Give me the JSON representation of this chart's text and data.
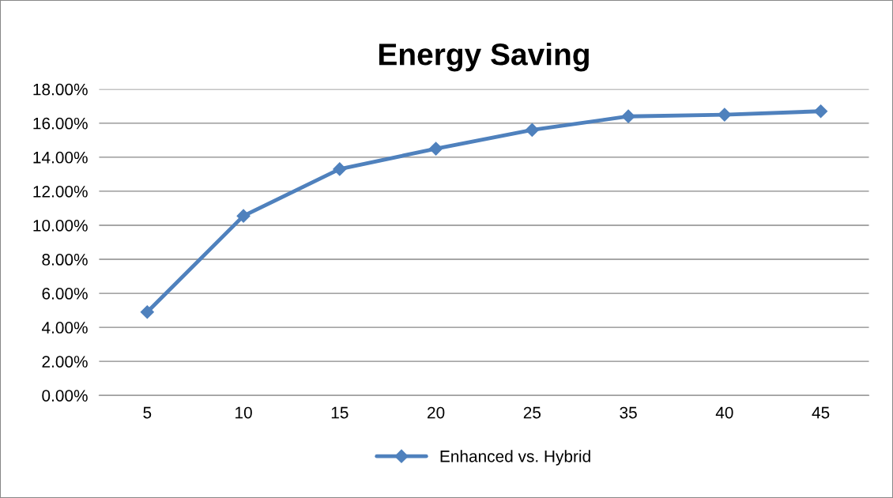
{
  "chart_data": {
    "type": "line",
    "title": "Energy Saving",
    "categories": [
      "5",
      "10",
      "15",
      "20",
      "25",
      "35",
      "40",
      "45"
    ],
    "series": [
      {
        "name": "Enhanced vs. Hybrid",
        "color": "#4f81bd",
        "values": [
          4.9,
          10.55,
          13.3,
          14.5,
          15.6,
          16.4,
          16.5,
          16.7
        ]
      }
    ],
    "ylim": [
      0,
      18
    ],
    "yticks": [
      {
        "value": 0,
        "label": "0.00%"
      },
      {
        "value": 2,
        "label": "2.00%"
      },
      {
        "value": 4,
        "label": "4.00%"
      },
      {
        "value": 6,
        "label": "6.00%"
      },
      {
        "value": 8,
        "label": "8.00%"
      },
      {
        "value": 10,
        "label": "10.00%"
      },
      {
        "value": 12,
        "label": "12.00%"
      },
      {
        "value": 14,
        "label": "14.00%"
      },
      {
        "value": 16,
        "label": "16.00%"
      },
      {
        "value": 18,
        "label": "18.00%"
      }
    ],
    "grid": "y",
    "legend": "bottom",
    "marker": "diamond",
    "line_style": "solid"
  }
}
